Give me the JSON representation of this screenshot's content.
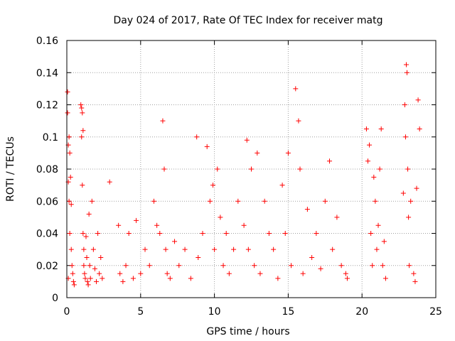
{
  "chart_data": {
    "type": "scatter",
    "title": "Day 024 of 2017, Rate Of TEC Index for receiver matg",
    "xlabel": "GPS time / hours",
    "ylabel": "ROTI / TECUs",
    "xlim": [
      0,
      25
    ],
    "ylim": [
      0,
      0.16
    ],
    "xticks": [
      "0",
      "5",
      "10",
      "15",
      "20",
      "25"
    ],
    "yticks": [
      "0",
      "0.02",
      "0.04",
      "0.06",
      "0.08",
      "0.1",
      "0.12",
      "0.14",
      "0.16"
    ],
    "grid": true,
    "marker": "+",
    "color": "#ff0000",
    "series": [
      {
        "x": [
          0.05,
          0.05,
          0.1,
          0.1,
          0.1,
          0.15,
          0.15,
          0.2,
          0.2,
          0.25,
          0.3,
          0.3,
          0.35,
          0.4,
          0.45,
          0.5,
          0.95,
          1.0,
          1.0,
          1.05,
          1.05,
          1.1,
          1.1,
          1.15,
          1.15,
          1.2,
          1.25,
          1.3,
          1.35,
          1.4,
          1.45,
          1.5,
          1.55,
          1.6,
          1.7,
          1.8,
          1.9,
          2.0,
          2.1,
          2.2,
          2.3,
          2.4,
          2.9,
          3.5,
          3.6,
          3.8,
          4.0,
          4.2,
          4.5,
          4.7,
          5.0,
          5.3,
          5.6,
          5.9,
          6.1,
          6.3,
          6.5,
          6.6,
          6.7,
          6.8,
          7.0,
          7.3,
          7.6,
          8.0,
          8.4,
          8.8,
          8.9,
          9.2,
          9.5,
          9.7,
          9.9,
          10.0,
          10.2,
          10.4,
          10.6,
          10.8,
          11.0,
          11.3,
          11.6,
          12.0,
          12.2,
          12.3,
          12.5,
          12.7,
          12.9,
          13.1,
          13.4,
          13.7,
          14.0,
          14.3,
          14.6,
          14.8,
          15.0,
          15.2,
          15.5,
          15.7,
          15.8,
          16.0,
          16.3,
          16.6,
          16.9,
          17.2,
          17.5,
          17.8,
          18.0,
          18.3,
          18.6,
          18.9,
          19.0,
          20.3,
          20.4,
          20.5,
          20.6,
          20.7,
          20.8,
          20.9,
          21.0,
          21.1,
          21.2,
          21.3,
          21.4,
          21.5,
          21.6,
          22.8,
          22.9,
          22.95,
          23.0,
          23.05,
          23.1,
          23.15,
          23.2,
          23.3,
          23.5,
          23.6,
          23.7,
          23.8,
          23.9
        ],
        "y": [
          0.128,
          0.115,
          0.095,
          0.072,
          0.012,
          0.1,
          0.06,
          0.09,
          0.04,
          0.075,
          0.058,
          0.03,
          0.02,
          0.015,
          0.01,
          0.008,
          0.12,
          0.118,
          0.1,
          0.115,
          0.07,
          0.104,
          0.04,
          0.03,
          0.02,
          0.015,
          0.012,
          0.038,
          0.025,
          0.01,
          0.008,
          0.052,
          0.02,
          0.012,
          0.06,
          0.03,
          0.018,
          0.01,
          0.04,
          0.015,
          0.025,
          0.012,
          0.072,
          0.045,
          0.015,
          0.01,
          0.02,
          0.04,
          0.012,
          0.048,
          0.015,
          0.03,
          0.02,
          0.06,
          0.045,
          0.04,
          0.11,
          0.08,
          0.03,
          0.015,
          0.012,
          0.035,
          0.02,
          0.03,
          0.012,
          0.1,
          0.025,
          0.04,
          0.094,
          0.06,
          0.07,
          0.03,
          0.08,
          0.05,
          0.02,
          0.04,
          0.015,
          0.03,
          0.06,
          0.045,
          0.098,
          0.03,
          0.08,
          0.02,
          0.09,
          0.015,
          0.06,
          0.04,
          0.03,
          0.012,
          0.07,
          0.04,
          0.09,
          0.02,
          0.13,
          0.11,
          0.08,
          0.015,
          0.055,
          0.025,
          0.04,
          0.018,
          0.06,
          0.085,
          0.03,
          0.05,
          0.02,
          0.015,
          0.012,
          0.105,
          0.085,
          0.095,
          0.04,
          0.02,
          0.075,
          0.06,
          0.03,
          0.045,
          0.08,
          0.105,
          0.02,
          0.035,
          0.012,
          0.065,
          0.12,
          0.1,
          0.145,
          0.14,
          0.08,
          0.05,
          0.02,
          0.06,
          0.015,
          0.01,
          0.068,
          0.123,
          0.105
        ]
      }
    ]
  }
}
